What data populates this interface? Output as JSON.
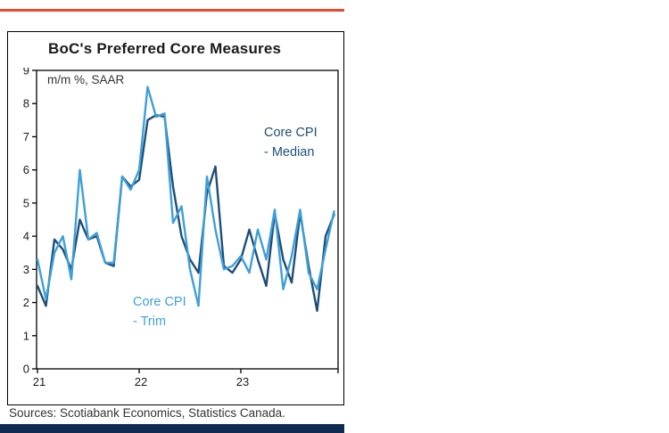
{
  "page": {
    "title": "BoC's Preferred Core Measures",
    "subtitle": "m/m %, SAAR",
    "sources": "Sources: Scotiabank Economics, Statistics Canada."
  },
  "colors": {
    "top_rule": "#e74a2b",
    "bottom_bar": "#0f2b52",
    "median_line": "#1e4e79",
    "trim_line": "#3f9fd8",
    "axis": "#000000",
    "tick_text": "#1a1a1a"
  },
  "annotations": {
    "median": {
      "line1": "Core CPI",
      "line2": "- Median"
    },
    "trim": {
      "line1": "Core CPI",
      "line2": "- Trim"
    }
  },
  "chart_data": {
    "type": "line",
    "title": "BoC's Preferred Core Measures",
    "ylabel": "m/m %, SAAR",
    "ylim": [
      0,
      9
    ],
    "y_ticks": [
      0,
      1,
      2,
      3,
      4,
      5,
      6,
      7,
      8,
      9
    ],
    "x_tick_labels": [
      "21",
      "22",
      "23"
    ],
    "x_tick_month_index": [
      0,
      12,
      24
    ],
    "grid": false,
    "legend": "on-chart-annotations",
    "months": [
      "2021-01",
      "2021-02",
      "2021-03",
      "2021-04",
      "2021-05",
      "2021-06",
      "2021-07",
      "2021-08",
      "2021-09",
      "2021-10",
      "2021-11",
      "2021-12",
      "2022-01",
      "2022-02",
      "2022-03",
      "2022-04",
      "2022-05",
      "2022-06",
      "2022-07",
      "2022-08",
      "2022-09",
      "2022-10",
      "2022-11",
      "2022-12",
      "2023-01",
      "2023-02",
      "2023-03",
      "2023-04",
      "2023-05",
      "2023-06",
      "2023-07",
      "2023-08",
      "2023-09",
      "2023-10",
      "2023-11",
      "2023-12"
    ],
    "series": [
      {
        "name": "Core CPI - Median",
        "color": "#1e4e79",
        "values": [
          2.5,
          1.9,
          3.9,
          3.6,
          3.0,
          4.5,
          3.9,
          4.0,
          3.2,
          3.1,
          5.8,
          5.5,
          5.7,
          7.5,
          7.65,
          7.6,
          5.5,
          4.0,
          3.3,
          2.9,
          5.3,
          6.1,
          3.1,
          2.9,
          3.3,
          4.2,
          3.3,
          2.5,
          4.7,
          3.3,
          2.6,
          4.7,
          3.1,
          1.75,
          4.0,
          4.65
        ]
      },
      {
        "name": "Core CPI - Trim",
        "color": "#3f9fd8",
        "values": [
          3.3,
          2.1,
          3.5,
          4.0,
          2.7,
          6.0,
          3.9,
          4.1,
          3.2,
          3.2,
          5.8,
          5.4,
          6.0,
          8.5,
          7.6,
          7.7,
          4.4,
          4.9,
          3.0,
          1.9,
          5.8,
          4.2,
          3.0,
          3.1,
          3.4,
          2.9,
          4.2,
          3.3,
          4.8,
          2.4,
          3.4,
          4.8,
          2.9,
          2.4,
          3.6,
          4.75
        ]
      }
    ]
  }
}
